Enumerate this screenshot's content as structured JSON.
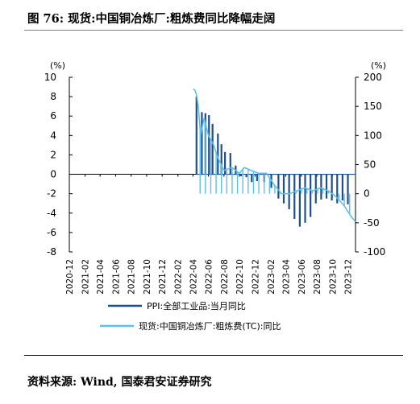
{
  "figure_title": "图 76: 现货:中国铜冶炼厂:粗炼费同比降幅走阔",
  "source_note": "资料来源: Wind, 国泰君安证券研究",
  "chart_data": {
    "type": "line",
    "left_axis_unit": "(%)",
    "right_axis_unit": "(%)",
    "left_ylim": [
      -8,
      10
    ],
    "right_ylim": [
      -100,
      200
    ],
    "left_ticks": [
      -8,
      -6,
      -4,
      -2,
      0,
      2,
      4,
      6,
      8,
      10
    ],
    "right_ticks": [
      -100,
      -50,
      0,
      50,
      100,
      150,
      200
    ],
    "x_tick_labels": [
      "2020-12",
      "2021-02",
      "2021-04",
      "2021-06",
      "2021-08",
      "2021-10",
      "2021-12",
      "2022-02",
      "2022-04",
      "2022-06",
      "2022-08",
      "2022-10",
      "2022-12",
      "2023-02",
      "2023-04",
      "2023-06",
      "2023-08",
      "2023-10",
      "2023-12"
    ],
    "x_range": [
      "2020-12-01",
      "2023-12-31"
    ],
    "legend_position": "bottom",
    "series": [
      {
        "name": "PPI:全部工业品:当月同比",
        "axis": "left",
        "color": "#1f4e8c",
        "style": "spikes",
        "points": [
          [
            "2022-04-15",
            8.0
          ],
          [
            "2022-05-06",
            6.4
          ],
          [
            "2022-05-20",
            6.3
          ],
          [
            "2022-06-03",
            6.1
          ],
          [
            "2022-06-17",
            5.2
          ],
          [
            "2022-07-08",
            4.2
          ],
          [
            "2022-07-22",
            3.1
          ],
          [
            "2022-08-05",
            2.3
          ],
          [
            "2022-08-26",
            2.2
          ],
          [
            "2022-09-16",
            0.9
          ],
          [
            "2022-10-07",
            -0.2
          ],
          [
            "2022-10-28",
            -0.3
          ],
          [
            "2022-11-18",
            -0.8
          ],
          [
            "2022-12-09",
            -0.7
          ],
          [
            "2023-01-06",
            -0.8
          ],
          [
            "2023-02-03",
            -1.4
          ],
          [
            "2023-03-03",
            -2.5
          ],
          [
            "2023-03-24",
            -3.0
          ],
          [
            "2023-04-14",
            -3.6
          ],
          [
            "2023-05-05",
            -4.6
          ],
          [
            "2023-05-26",
            -5.4
          ],
          [
            "2023-06-16",
            -5.0
          ],
          [
            "2023-07-07",
            -4.4
          ],
          [
            "2023-07-28",
            -3.0
          ],
          [
            "2023-08-18",
            -2.6
          ],
          [
            "2023-09-08",
            -2.5
          ],
          [
            "2023-09-29",
            -2.7
          ],
          [
            "2023-10-20",
            -3.0
          ],
          [
            "2023-11-10",
            -2.7
          ],
          [
            "2023-12-01",
            -3.1
          ]
        ]
      },
      {
        "name": "现货:中国铜冶炼厂:粗炼费(TC):同比",
        "axis": "right",
        "color": "#5bc0eb",
        "style": "line_with_spikes",
        "points": [
          [
            "2022-04-01",
            180
          ],
          [
            "2022-04-08",
            178
          ],
          [
            "2022-04-15",
            170
          ],
          [
            "2022-04-22",
            150
          ],
          [
            "2022-05-01",
            100
          ],
          [
            "2022-05-15",
            130
          ],
          [
            "2022-06-01",
            100
          ],
          [
            "2022-06-20",
            85
          ],
          [
            "2022-07-10",
            60
          ],
          [
            "2022-08-01",
            40
          ],
          [
            "2022-09-01",
            45
          ],
          [
            "2022-10-01",
            35
          ],
          [
            "2022-10-20",
            45
          ],
          [
            "2022-11-15",
            40
          ],
          [
            "2022-12-15",
            35
          ],
          [
            "2023-01-15",
            35
          ],
          [
            "2023-02-15",
            15
          ],
          [
            "2023-03-15",
            0
          ],
          [
            "2023-04-15",
            0
          ],
          [
            "2023-05-15",
            5
          ],
          [
            "2023-06-15",
            10
          ],
          [
            "2023-07-15",
            5
          ],
          [
            "2023-08-15",
            10
          ],
          [
            "2023-09-15",
            5
          ],
          [
            "2023-10-15",
            -5
          ],
          [
            "2023-11-15",
            -20
          ],
          [
            "2023-12-15",
            -40
          ],
          [
            "2023-12-31",
            -48
          ]
        ],
        "spike_dates": [
          "2022-04-29",
          "2022-05-20",
          "2022-06-10",
          "2022-07-01",
          "2022-07-22",
          "2022-08-12",
          "2022-09-02",
          "2022-09-23",
          "2022-10-14",
          "2022-11-04",
          "2022-11-25",
          "2022-12-16",
          "2023-01-06",
          "2023-01-27",
          "2023-02-17",
          "2023-03-10",
          "2023-03-31",
          "2023-04-21",
          "2023-05-12",
          "2023-06-02",
          "2023-06-23",
          "2023-07-14",
          "2023-08-04",
          "2023-08-25",
          "2023-09-15",
          "2023-10-06",
          "2023-10-27",
          "2023-11-17",
          "2023-12-08"
        ]
      }
    ]
  }
}
